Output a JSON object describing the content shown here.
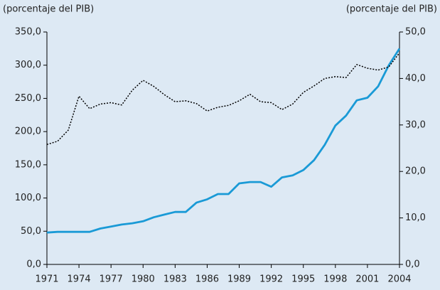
{
  "chart_data": {
    "type": "line",
    "y_label": "(porcentaje del PIB)",
    "y2_label": "(porcentaje del PIB)",
    "x": [
      1971,
      1972,
      1973,
      1974,
      1975,
      1976,
      1977,
      1978,
      1979,
      1980,
      1981,
      1982,
      1983,
      1984,
      1985,
      1986,
      1987,
      1988,
      1989,
      1990,
      1991,
      1992,
      1993,
      1994,
      1995,
      1996,
      1997,
      1998,
      1999,
      2000,
      2001,
      2002,
      2003,
      2004
    ],
    "xlim": [
      1971,
      2004
    ],
    "xticks": [
      1971,
      1974,
      1977,
      1980,
      1983,
      1986,
      1989,
      1992,
      1995,
      1998,
      2001,
      2004
    ],
    "ylim": [
      0,
      350
    ],
    "yticks": [
      {
        "value": 0,
        "label": "0,0"
      },
      {
        "value": 50,
        "label": "50,0"
      },
      {
        "value": 100,
        "label": "100,0"
      },
      {
        "value": 150,
        "label": "150,0"
      },
      {
        "value": 200,
        "label": "200,0"
      },
      {
        "value": 250,
        "label": "250,0"
      },
      {
        "value": 300,
        "label": "300,0"
      },
      {
        "value": 350,
        "label": "350,0"
      }
    ],
    "y2lim": [
      0,
      50
    ],
    "y2ticks": [
      {
        "value": 0,
        "label": "0,0"
      },
      {
        "value": 10,
        "label": "10,0"
      },
      {
        "value": 20,
        "label": "20,0"
      },
      {
        "value": 30,
        "label": "30,0"
      },
      {
        "value": 40,
        "label": "40,0"
      },
      {
        "value": 50,
        "label": "50,0"
      }
    ],
    "grid": false,
    "series": [
      {
        "color": "#1a9ad6",
        "style": "solid",
        "axis": "y",
        "values": [
          48,
          49,
          49,
          49,
          49,
          54,
          57,
          60,
          62,
          65,
          71,
          75,
          79,
          79,
          93,
          98,
          106,
          106,
          122,
          124,
          124,
          117,
          131,
          134,
          142,
          157,
          180,
          209,
          224,
          247,
          251,
          268,
          300,
          325
        ]
      },
      {
        "color": "#000000",
        "style": "dotted",
        "axis": "y2",
        "values": [
          25.8,
          26.5,
          28.9,
          36.2,
          33.5,
          34.5,
          34.8,
          34.3,
          37.5,
          39.6,
          38.3,
          36.5,
          35,
          35.2,
          34.6,
          33,
          33.8,
          34.2,
          35.2,
          36.6,
          35,
          34.8,
          33.3,
          34.5,
          37,
          38.4,
          40,
          40.4,
          40.2,
          43,
          42.2,
          41.8,
          42.5,
          45.5
        ]
      }
    ]
  }
}
